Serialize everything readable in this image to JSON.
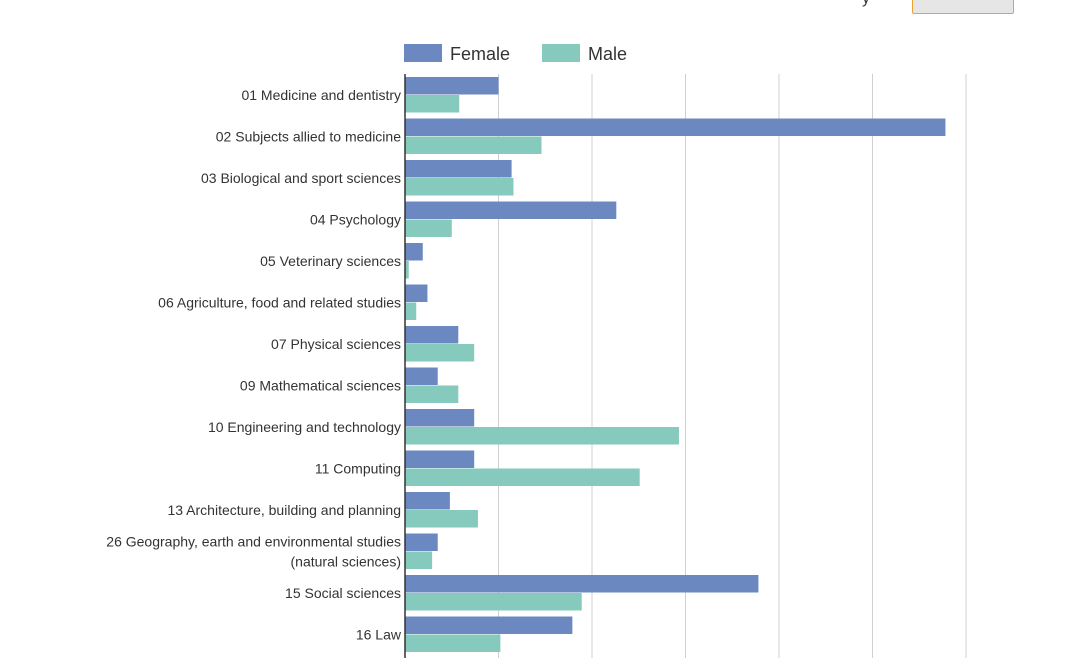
{
  "corner_text": "y",
  "chart_data": {
    "type": "bar",
    "orientation": "horizontal",
    "categories": [
      [
        "01 Medicine and dentistry"
      ],
      [
        "02 Subjects allied to medicine"
      ],
      [
        "03 Biological and sport sciences"
      ],
      [
        "04 Psychology"
      ],
      [
        "05 Veterinary sciences"
      ],
      [
        "06 Agriculture, food and related studies"
      ],
      [
        "07 Physical sciences"
      ],
      [
        "09 Mathematical sciences"
      ],
      [
        "10 Engineering and technology"
      ],
      [
        "11 Computing"
      ],
      [
        "13 Architecture, building and planning"
      ],
      [
        "26 Geography, earth and environmental studies",
        "(natural sciences)"
      ],
      [
        "15 Social sciences"
      ],
      [
        "16 Law"
      ]
    ],
    "series": [
      {
        "name": "Female",
        "color": "#6b88c0",
        "values": [
          10.0,
          57.8,
          11.4,
          22.6,
          1.9,
          2.4,
          5.7,
          3.5,
          7.4,
          7.4,
          4.8,
          3.5,
          37.8,
          17.9
        ]
      },
      {
        "name": "Male",
        "color": "#86c9bd",
        "values": [
          5.8,
          14.6,
          11.6,
          5.0,
          0.4,
          1.2,
          7.4,
          5.7,
          29.3,
          25.1,
          7.8,
          2.9,
          18.9,
          10.2
        ]
      }
    ],
    "xlim": [
      0,
      60
    ],
    "grid": true,
    "legend_position": "top"
  }
}
